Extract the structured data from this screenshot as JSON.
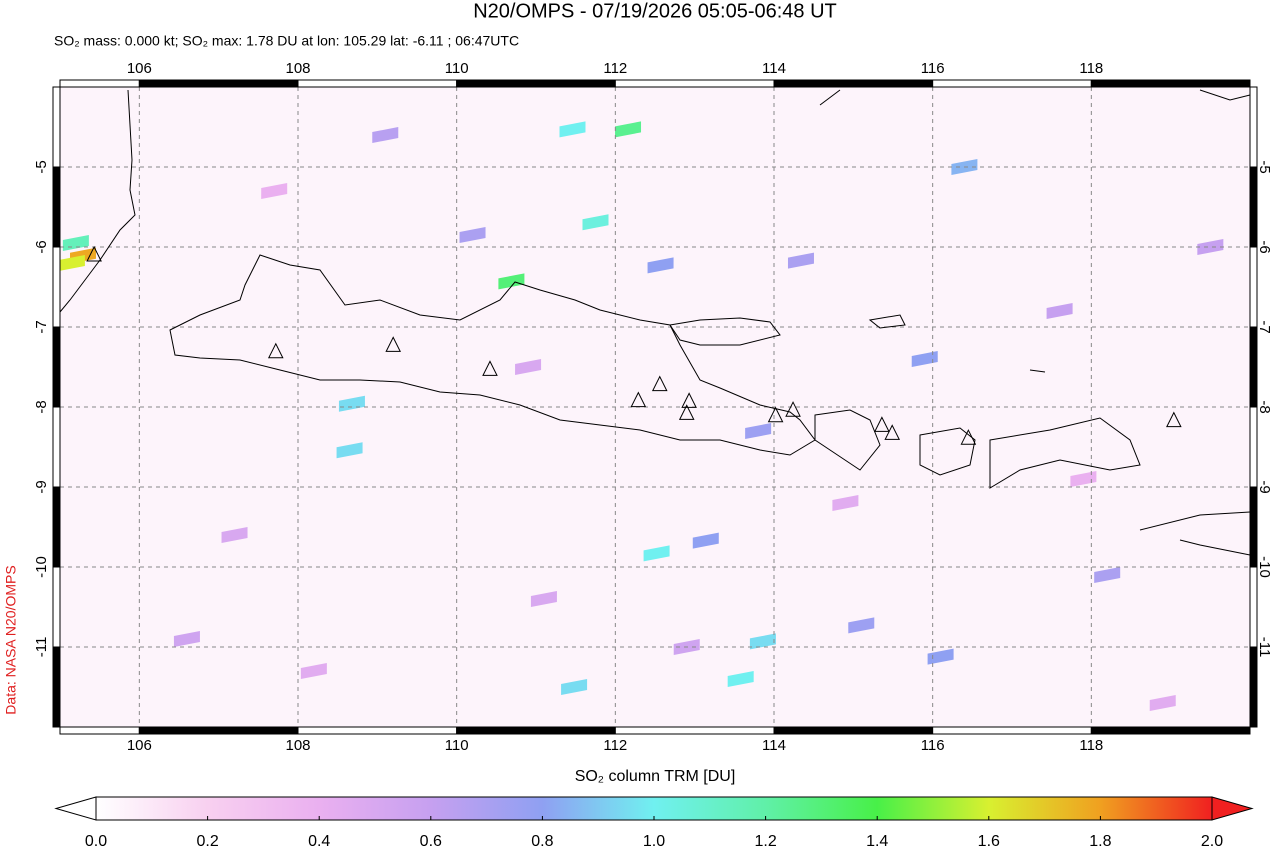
{
  "chart_data": {
    "type": "map",
    "title": "N20/OMPS - 07/19/2026 05:05-06:48 UT",
    "subtitle": "SO₂ mass: 0.000 kt; SO₂ max: 1.78 DU at lon: 105.29 lat: -6.11 ; 06:47UTC",
    "credit": "Data: NASA N20/OMPS",
    "colorbar_label": "SO₂ column TRM [DU]",
    "xlim": [
      105,
      120
    ],
    "ylim": [
      -12,
      -4
    ],
    "xticks": [
      106,
      108,
      110,
      112,
      114,
      116,
      118
    ],
    "yticks": [
      -5,
      -6,
      -7,
      -8,
      -9,
      -10,
      -11
    ],
    "grid": true,
    "clim": [
      0,
      2
    ],
    "cticks": [
      {
        "value": 0,
        "label": "0.0"
      },
      {
        "value": 0.2,
        "label": "0.2"
      },
      {
        "value": 0.4,
        "label": "0.4"
      },
      {
        "value": 0.6,
        "label": "0.6"
      },
      {
        "value": 0.8,
        "label": "0.8"
      },
      {
        "value": 1.0,
        "label": "1.0"
      },
      {
        "value": 1.2,
        "label": "1.2"
      },
      {
        "value": 1.4,
        "label": "1.4"
      },
      {
        "value": 1.6,
        "label": "1.6"
      },
      {
        "value": 1.8,
        "label": "1.8"
      },
      {
        "value": 2.0,
        "label": "2.0"
      }
    ],
    "colormap": [
      "#ffffff",
      "#f8d0f0",
      "#eab0f0",
      "#c6a0f0",
      "#8fa0f2",
      "#70f0f0",
      "#60f0a8",
      "#48f048",
      "#d8f030",
      "#f0a020",
      "#f02020"
    ],
    "pixels": {
      "lon": [
        105.29,
        105.15,
        105.2,
        112.16,
        110.69,
        111.46,
        111.75,
        112.52,
        113.58,
        113.86,
        111.48,
        108.65,
        108.68,
        112.57,
        113.14,
        115.1,
        116.1,
        114.34,
        109.1,
        110.2,
        113.8,
        116.4,
        118.2,
        117.6,
        107.2,
        106.6,
        110.9,
        114.9,
        119.5,
        108.2,
        111.1,
        115.9,
        117.9,
        112.9,
        107.7,
        118.9
      ],
      "lat": [
        -6.11,
        -6.2,
        -5.95,
        -4.53,
        -6.43,
        -4.53,
        -5.69,
        -9.83,
        -11.4,
        -10.93,
        -11.5,
        -8.54,
        -7.96,
        -6.23,
        -9.67,
        -10.73,
        -11.12,
        -6.17,
        -4.6,
        -5.85,
        -8.3,
        -5.0,
        -10.1,
        -6.8,
        -9.6,
        -10.9,
        -7.5,
        -9.2,
        -6.0,
        -11.3,
        -10.4,
        -7.4,
        -8.9,
        -11.0,
        -5.3,
        -11.7
      ],
      "values": [
        1.78,
        1.6,
        1.15,
        1.25,
        1.3,
        1.0,
        1.05,
        1.0,
        1.0,
        0.95,
        0.95,
        0.95,
        0.95,
        0.8,
        0.8,
        0.75,
        0.8,
        0.7,
        0.65,
        0.7,
        0.75,
        0.85,
        0.7,
        0.6,
        0.5,
        0.55,
        0.5,
        0.45,
        0.6,
        0.45,
        0.5,
        0.8,
        0.4,
        0.55,
        0.4,
        0.45
      ]
    },
    "volcanoes": {
      "lon": [
        105.43,
        107.72,
        109.2,
        110.42,
        112.29,
        112.56,
        112.93,
        112.9,
        114.02,
        114.24,
        115.36,
        115.49,
        116.45,
        119.04
      ],
      "lat": [
        -6.1,
        -7.31,
        -7.23,
        -7.53,
        -7.92,
        -7.72,
        -7.93,
        -8.08,
        -8.11,
        -8.04,
        -8.23,
        -8.33,
        -8.39,
        -8.17
      ]
    }
  }
}
